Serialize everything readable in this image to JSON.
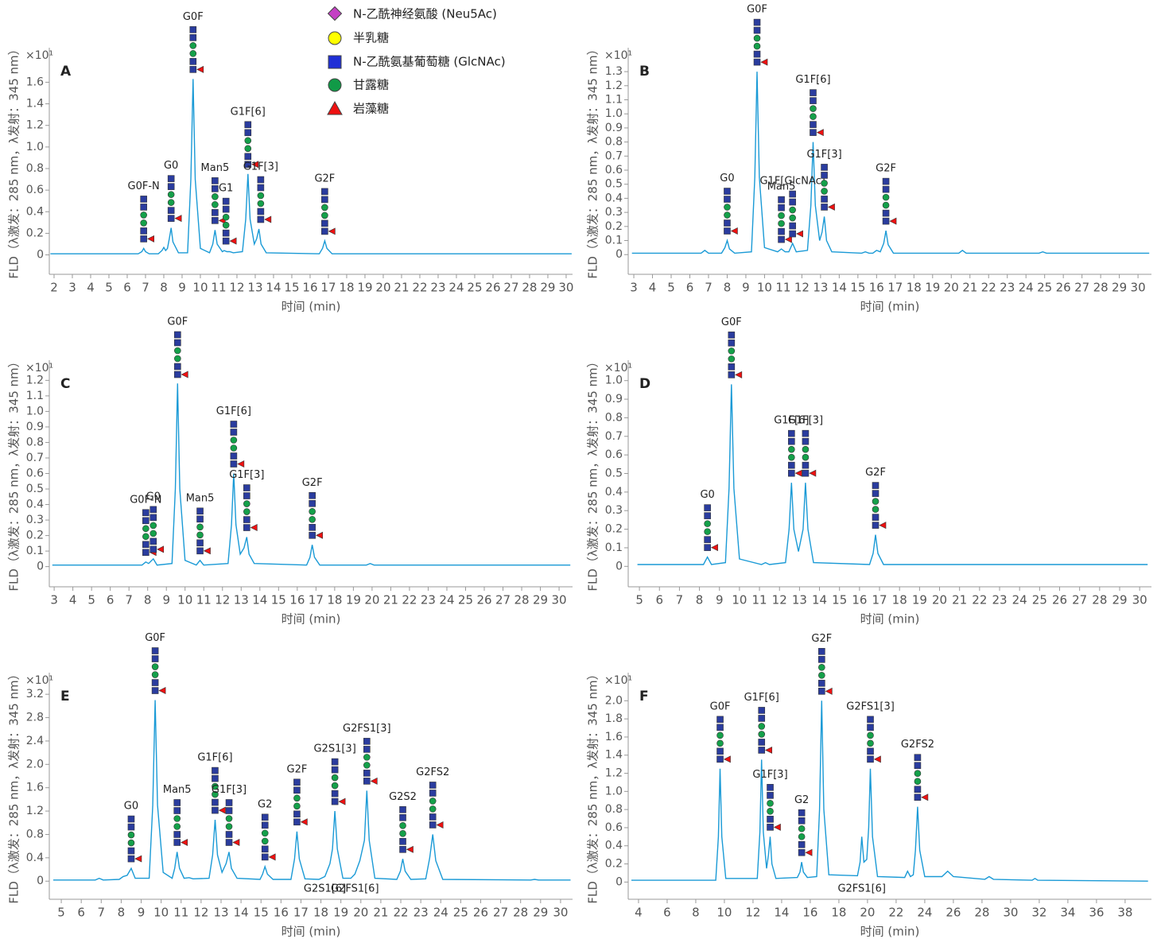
{
  "legend": [
    "N-乙酰神经氨酸 (Neu5Ac)",
    "半乳糖",
    "N-乙酰氨基葡萄糖 (GlcNAc)",
    "甘露糖",
    "岩藻糖"
  ],
  "chart_data": [
    {
      "type": "line",
      "panel": "A",
      "color": "#1a9ad6",
      "xlabel": "时间 (min)",
      "ylabel": "FLD（λ激发：285 nm，λ发射：345 nm）",
      "y_exponent": "×10¹",
      "xlim": [
        1.74,
        30.35
      ],
      "ylim": [
        -0.18,
        1.92
      ],
      "xticks": [
        2,
        3,
        4,
        5,
        6,
        7,
        8,
        9,
        10,
        11,
        12,
        13,
        14,
        15,
        16,
        17,
        18,
        19,
        20,
        21,
        22,
        23,
        24,
        25,
        26,
        27,
        28,
        29,
        30
      ],
      "yticks": [
        0,
        0.2,
        0.4,
        0.6,
        0.8,
        {
          "value": 1,
          "label": "1.0"
        },
        1.2,
        1.4,
        1.6
      ],
      "x": [
        1.8,
        6.6,
        6.8,
        6.9,
        7.0,
        7.2,
        7.7,
        7.9,
        8.0,
        8.1,
        8.2,
        8.3,
        8.4,
        8.5,
        8.8,
        9.3,
        9.48,
        9.6,
        9.72,
        10.0,
        10.5,
        10.68,
        10.8,
        10.92,
        11.2,
        11.3,
        11.45,
        11.6,
        11.8,
        12.3,
        12.48,
        12.6,
        12.72,
        12.95,
        13.08,
        13.2,
        13.32,
        13.6,
        16.5,
        16.68,
        16.8,
        16.92,
        17.2,
        30.3
      ],
      "values": [
        0.01,
        0.01,
        0.03,
        0.06,
        0.03,
        0.01,
        0.01,
        0.04,
        0.07,
        0.04,
        0.06,
        0.15,
        0.25,
        0.12,
        0.02,
        0.02,
        0.7,
        1.63,
        0.7,
        0.06,
        0.02,
        0.1,
        0.23,
        0.1,
        0.03,
        0.04,
        0.03,
        0.03,
        0.02,
        0.03,
        0.33,
        0.75,
        0.33,
        0.1,
        0.15,
        0.24,
        0.1,
        0.02,
        0.01,
        0.06,
        0.13,
        0.06,
        0.01,
        0.01
      ],
      "annotations": [
        {
          "text": "G0F-N",
          "x": 6.9
        },
        {
          "text": "G0",
          "x": 8.4
        },
        {
          "text": "G0F",
          "x": 9.6
        },
        {
          "text": "Man5",
          "x": 10.8
        },
        {
          "text": "G1",
          "x": 11.4
        },
        {
          "text": "G1F[6]",
          "x": 12.6
        },
        {
          "text": "G1F[3]",
          "x": 13.3
        },
        {
          "text": "G2F",
          "x": 16.8
        }
      ]
    },
    {
      "type": "line",
      "panel": "B",
      "color": "#1a9ad6",
      "xlabel": "时间 (min)",
      "ylabel": "FLD（λ激发：285 nm，λ发射：345 nm）",
      "y_exponent": "×10¹",
      "xlim": [
        2.7,
        30.72
      ],
      "ylim": [
        -0.14,
        1.47
      ],
      "xticks": [
        3,
        4,
        5,
        6,
        7,
        8,
        9,
        10,
        11,
        12,
        13,
        14,
        15,
        16,
        17,
        18,
        19,
        20,
        21,
        22,
        23,
        24,
        25,
        26,
        27,
        28,
        29,
        30
      ],
      "yticks": [
        0,
        0.1,
        0.2,
        0.3,
        0.4,
        0.5,
        0.6,
        0.7,
        0.8,
        0.9,
        {
          "value": 1,
          "label": "1.0"
        },
        1.1,
        1.2,
        1.3
      ],
      "x": [
        2.9,
        6.6,
        6.8,
        7.0,
        7.7,
        7.88,
        8.0,
        8.12,
        8.4,
        9.3,
        9.48,
        9.6,
        9.72,
        10.0,
        10.7,
        10.9,
        11.1,
        11.3,
        11.5,
        11.7,
        12.3,
        12.48,
        12.6,
        12.72,
        12.95,
        13.08,
        13.2,
        13.32,
        13.6,
        15.2,
        15.4,
        15.6,
        15.8,
        16.0,
        16.2,
        16.38,
        16.5,
        16.62,
        16.9,
        20.4,
        20.6,
        20.8,
        24.7,
        24.9,
        25.1,
        30.6
      ],
      "values": [
        0.01,
        0.01,
        0.03,
        0.01,
        0.01,
        0.05,
        0.1,
        0.04,
        0.01,
        0.02,
        0.55,
        1.3,
        0.55,
        0.05,
        0.02,
        0.04,
        0.02,
        0.02,
        0.08,
        0.02,
        0.03,
        0.35,
        0.8,
        0.35,
        0.1,
        0.16,
        0.27,
        0.1,
        0.02,
        0.01,
        0.02,
        0.01,
        0.01,
        0.03,
        0.02,
        0.08,
        0.17,
        0.07,
        0.01,
        0.01,
        0.03,
        0.01,
        0.01,
        0.02,
        0.01,
        0.01
      ],
      "annotations": [
        {
          "text": "G0",
          "x": 8.0
        },
        {
          "text": "G0F",
          "x": 9.6
        },
        {
          "text": "Man5",
          "x": 10.9
        },
        {
          "text": "G1F[GlcNAc]",
          "x": 11.5
        },
        {
          "text": "G1F[6]",
          "x": 12.6
        },
        {
          "text": "G1F[3]",
          "x": 13.2
        },
        {
          "text": "G2F",
          "x": 16.5
        }
      ]
    },
    {
      "type": "line",
      "panel": "C",
      "color": "#1a9ad6",
      "xlabel": "时间 (min)",
      "ylabel": "FLD（λ激发：285 nm，λ发射：345 nm）",
      "y_exponent": "×10¹",
      "xlim": [
        2.74,
        30.72
      ],
      "ylim": [
        -0.13,
        1.33
      ],
      "xticks": [
        3,
        4,
        5,
        6,
        7,
        8,
        9,
        10,
        11,
        12,
        13,
        14,
        15,
        16,
        17,
        18,
        19,
        20,
        21,
        22,
        23,
        24,
        25,
        26,
        27,
        28,
        29,
        30
      ],
      "yticks": [
        0,
        0.1,
        0.2,
        0.3,
        0.4,
        0.5,
        0.6,
        0.7,
        0.8,
        0.9,
        {
          "value": 1,
          "label": "1.0"
        },
        1.1,
        1.2
      ],
      "x": [
        2.9,
        7.7,
        7.9,
        8.05,
        8.3,
        8.5,
        9.3,
        9.48,
        9.6,
        9.72,
        10.0,
        10.6,
        10.8,
        11.0,
        12.3,
        12.48,
        12.6,
        12.72,
        12.95,
        13.15,
        13.3,
        13.42,
        13.7,
        16.5,
        16.68,
        16.8,
        16.92,
        17.2,
        19.7,
        19.9,
        20.1,
        30.6
      ],
      "values": [
        0.01,
        0.01,
        0.03,
        0.02,
        0.05,
        0.01,
        0.02,
        0.5,
        1.18,
        0.5,
        0.04,
        0.01,
        0.04,
        0.01,
        0.02,
        0.27,
        0.6,
        0.27,
        0.08,
        0.12,
        0.19,
        0.08,
        0.02,
        0.01,
        0.06,
        0.14,
        0.06,
        0.01,
        0.01,
        0.02,
        0.01,
        0.01
      ],
      "annotations": [
        {
          "text": "G0F-N",
          "x": 7.9
        },
        {
          "text": "G0",
          "x": 8.3
        },
        {
          "text": "G0F",
          "x": 9.6
        },
        {
          "text": "Man5",
          "x": 10.8
        },
        {
          "text": "G1F[6]",
          "x": 12.6
        },
        {
          "text": "G1F[3]",
          "x": 13.3
        },
        {
          "text": "G2F",
          "x": 16.8
        }
      ]
    },
    {
      "type": "line",
      "panel": "D",
      "color": "#1a9ad6",
      "xlabel": "时间 (min)",
      "ylabel": "FLD（λ激发：285 nm，λ发射：345 nm）",
      "y_exponent": "×10¹",
      "xlim": [
        4.44,
        30.59
      ],
      "ylim": [
        -0.11,
        1.11
      ],
      "xticks": [
        5,
        6,
        7,
        8,
        9,
        10,
        11,
        12,
        13,
        14,
        15,
        16,
        17,
        18,
        19,
        20,
        21,
        22,
        23,
        24,
        25,
        26,
        27,
        28,
        29,
        30
      ],
      "yticks": [
        0,
        0.1,
        0.2,
        0.3,
        0.4,
        0.5,
        0.6,
        0.7,
        0.8,
        0.9,
        {
          "value": 1,
          "label": "1.0"
        }
      ],
      "x": [
        4.9,
        8.2,
        8.4,
        8.6,
        9.3,
        9.48,
        9.6,
        9.72,
        10.0,
        11.1,
        11.3,
        11.5,
        12.3,
        12.48,
        12.6,
        12.72,
        12.95,
        13.18,
        13.3,
        13.42,
        13.7,
        16.5,
        16.68,
        16.8,
        16.92,
        17.2,
        30.4
      ],
      "values": [
        0.01,
        0.01,
        0.05,
        0.01,
        0.02,
        0.42,
        0.98,
        0.42,
        0.04,
        0.01,
        0.02,
        0.01,
        0.02,
        0.2,
        0.45,
        0.2,
        0.08,
        0.2,
        0.45,
        0.2,
        0.02,
        0.01,
        0.07,
        0.17,
        0.07,
        0.01,
        0.01
      ],
      "annotations": [
        {
          "text": "G0",
          "x": 8.4
        },
        {
          "text": "G0F",
          "x": 9.6
        },
        {
          "text": "G1F[6]",
          "x": 12.6
        },
        {
          "text": "G1F[3]",
          "x": 13.3
        },
        {
          "text": "G2F",
          "x": 16.8
        }
      ]
    },
    {
      "type": "line",
      "panel": "E",
      "color": "#1a9ad6",
      "xlabel": "时间 (min)",
      "ylabel": "FLD（λ激发：285 nm，λ发射：345 nm）",
      "y_exponent": "×10¹",
      "xlim": [
        4.4,
        30.6
      ],
      "ylim": [
        -0.31,
        3.57
      ],
      "xticks": [
        5,
        6,
        7,
        8,
        9,
        10,
        11,
        12,
        13,
        14,
        15,
        16,
        17,
        18,
        19,
        20,
        21,
        22,
        23,
        24,
        25,
        26,
        27,
        28,
        29,
        30
      ],
      "yticks": [
        0,
        0.4,
        0.8,
        1.2,
        1.6,
        {
          "value": 2,
          "label": "2.0"
        },
        2.4,
        2.8,
        3.2
      ],
      "x": [
        4.6,
        6.7,
        6.9,
        7.1,
        7.9,
        8.1,
        8.3,
        8.5,
        8.7,
        9.4,
        9.58,
        9.7,
        9.82,
        10.1,
        10.55,
        10.68,
        10.8,
        10.92,
        11.15,
        11.4,
        11.6,
        12.4,
        12.58,
        12.7,
        12.82,
        13.05,
        13.25,
        13.4,
        13.52,
        13.8,
        14.95,
        15.08,
        15.2,
        15.32,
        15.6,
        16.5,
        16.68,
        16.8,
        16.92,
        17.2,
        17.9,
        18.2,
        18.45,
        18.58,
        18.7,
        18.82,
        19.1,
        19.5,
        19.7,
        19.95,
        20.18,
        20.3,
        20.42,
        20.7,
        21.8,
        21.98,
        22.1,
        22.22,
        22.5,
        23.25,
        23.45,
        23.6,
        23.75,
        24.1,
        28.5,
        28.7,
        28.9,
        30.5
      ],
      "values": [
        0.02,
        0.02,
        0.05,
        0.02,
        0.03,
        0.08,
        0.1,
        0.22,
        0.05,
        0.05,
        1.3,
        3.1,
        1.3,
        0.15,
        0.05,
        0.22,
        0.5,
        0.22,
        0.05,
        0.06,
        0.04,
        0.05,
        0.45,
        1.05,
        0.45,
        0.15,
        0.3,
        0.5,
        0.22,
        0.05,
        0.03,
        0.12,
        0.25,
        0.12,
        0.03,
        0.03,
        0.38,
        0.85,
        0.38,
        0.04,
        0.03,
        0.08,
        0.3,
        0.55,
        1.2,
        0.55,
        0.05,
        0.05,
        0.12,
        0.35,
        0.7,
        1.55,
        0.7,
        0.05,
        0.03,
        0.17,
        0.38,
        0.17,
        0.03,
        0.04,
        0.4,
        0.8,
        0.35,
        0.03,
        0.02,
        0.03,
        0.02,
        0.02
      ],
      "annotations": [
        {
          "text": "G0",
          "x": 8.5
        },
        {
          "text": "G0F",
          "x": 9.7
        },
        {
          "text": "Man5",
          "x": 10.8
        },
        {
          "text": "G1F[6]",
          "x": 12.7
        },
        {
          "text": "G1F[3]",
          "x": 13.4
        },
        {
          "text": "G2",
          "x": 15.2
        },
        {
          "text": "G2F",
          "x": 16.8
        },
        {
          "text": "G2S1[3]",
          "x": 18.7
        },
        {
          "text": "G2S1[6]",
          "x": 18.2,
          "position": "below"
        },
        {
          "text": "G2FS1[3]",
          "x": 20.3
        },
        {
          "text": "G2FS1[6]",
          "x": 19.7,
          "position": "below"
        },
        {
          "text": "G2S2",
          "x": 22.1
        },
        {
          "text": "G2FS2",
          "x": 23.6
        }
      ]
    },
    {
      "type": "line",
      "panel": "F",
      "color": "#1a9ad6",
      "xlabel": "时间 (min)",
      "ylabel": "FLD（λ激发：285 nm，λ发射：345 nm）",
      "y_exponent": "×10¹",
      "xlim": [
        3.28,
        39.84
      ],
      "ylim": [
        -0.19,
        2.31
      ],
      "xticks": [
        4,
        6,
        8,
        10,
        12,
        14,
        16,
        18,
        20,
        22,
        24,
        26,
        28,
        30,
        32,
        34,
        36,
        38
      ],
      "yticks": [
        0,
        0.2,
        0.4,
        0.6,
        0.8,
        {
          "value": 1,
          "label": "1.0"
        },
        1.2,
        1.4,
        1.6,
        1.8,
        {
          "value": 2,
          "label": "2.0"
        }
      ],
      "x": [
        3.5,
        9.4,
        9.58,
        9.7,
        9.82,
        10.1,
        12.3,
        12.48,
        12.6,
        12.72,
        12.95,
        13.08,
        13.2,
        13.32,
        13.6,
        15.1,
        15.28,
        15.4,
        15.52,
        15.8,
        16.45,
        16.65,
        16.8,
        16.95,
        17.3,
        19.3,
        19.48,
        19.6,
        19.75,
        19.95,
        20.08,
        20.2,
        20.35,
        20.7,
        22.6,
        22.8,
        23.0,
        23.2,
        23.35,
        23.5,
        23.65,
        24.0,
        25.2,
        25.6,
        26.0,
        28.2,
        28.5,
        28.8,
        31.5,
        31.7,
        31.9,
        39.6
      ],
      "values": [
        0.02,
        0.02,
        0.5,
        1.25,
        0.5,
        0.04,
        0.04,
        0.55,
        1.35,
        0.55,
        0.15,
        0.3,
        0.5,
        0.2,
        0.04,
        0.05,
        0.11,
        0.22,
        0.11,
        0.05,
        0.06,
        0.8,
        2.0,
        0.8,
        0.08,
        0.07,
        0.22,
        0.5,
        0.22,
        0.25,
        0.6,
        1.25,
        0.5,
        0.06,
        0.05,
        0.12,
        0.06,
        0.08,
        0.35,
        0.83,
        0.35,
        0.06,
        0.06,
        0.12,
        0.06,
        0.03,
        0.06,
        0.03,
        0.02,
        0.04,
        0.02,
        0.01
      ],
      "annotations": [
        {
          "text": "G0F",
          "x": 9.7
        },
        {
          "text": "G1F[6]",
          "x": 12.6
        },
        {
          "text": "G1F[3]",
          "x": 13.2
        },
        {
          "text": "G2",
          "x": 15.4
        },
        {
          "text": "G2F",
          "x": 16.8
        },
        {
          "text": "G2FS1[3]",
          "x": 20.2
        },
        {
          "text": "G2FS1[6]",
          "x": 19.6,
          "position": "below"
        },
        {
          "text": "G2FS2",
          "x": 23.5
        }
      ]
    }
  ]
}
